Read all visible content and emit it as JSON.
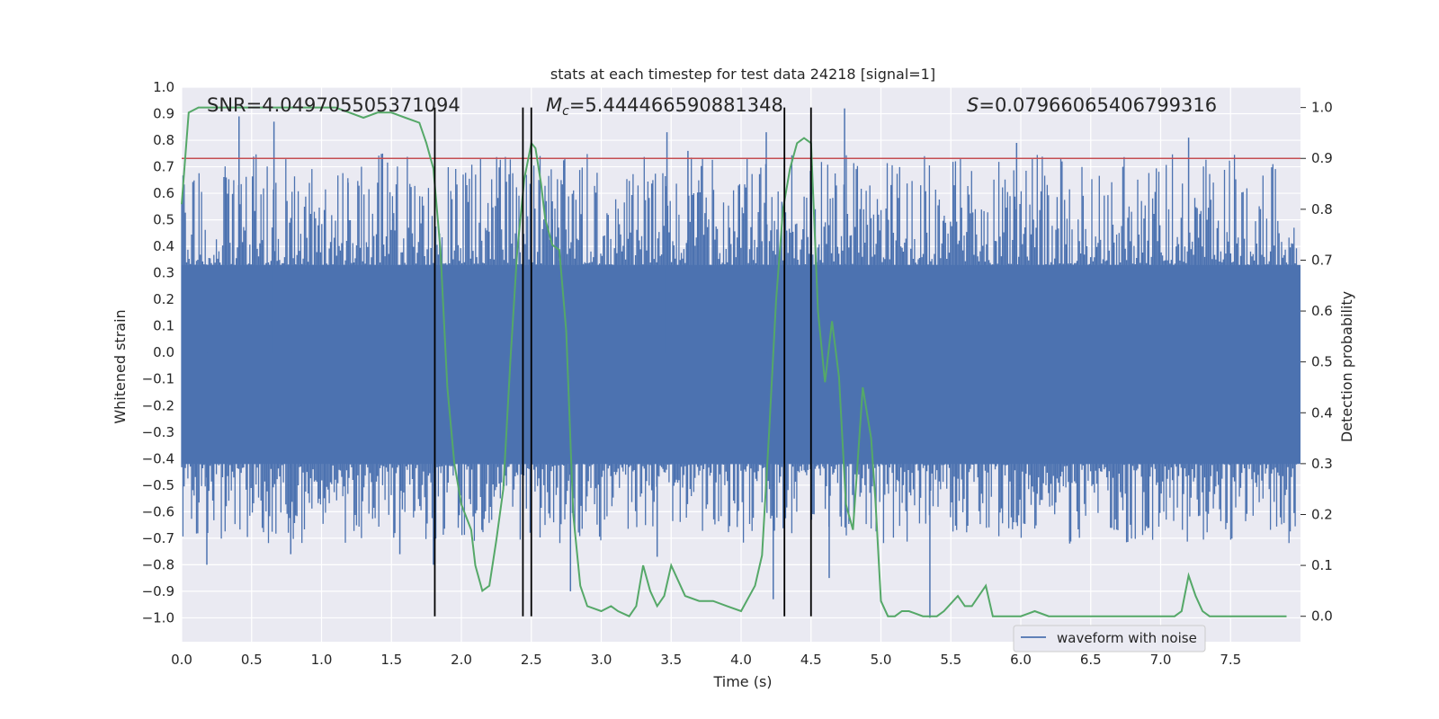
{
  "chart_data": {
    "type": "line",
    "title": "stats at each timestep for test data 24218 [signal=1]",
    "xlabel": "Time (s)",
    "ylabel_left": "Whitened strain",
    "ylabel_right": "Detection probability",
    "xlim": [
      0.0,
      8.0
    ],
    "ylim_left": [
      -1.09,
      1.0
    ],
    "ylim_right": [
      -0.05,
      1.04
    ],
    "x_ticks": [
      "0.0",
      "0.5",
      "1.0",
      "1.5",
      "2.0",
      "2.5",
      "3.0",
      "3.5",
      "4.0",
      "4.5",
      "5.0",
      "5.5",
      "6.0",
      "6.5",
      "7.0",
      "7.5"
    ],
    "y_ticks_left": [
      "1.0",
      "0.9",
      "0.8",
      "0.7",
      "0.6",
      "0.5",
      "0.4",
      "0.3",
      "0.2",
      "0.1",
      "0.0",
      "-0.1",
      "-0.2",
      "-0.3",
      "-0.4",
      "-0.5",
      "-0.6",
      "-0.7",
      "-0.8",
      "-0.9",
      "-1.0"
    ],
    "y_ticks_right": [
      "1.0",
      "0.9",
      "0.8",
      "0.7",
      "0.6",
      "0.5",
      "0.4",
      "0.3",
      "0.2",
      "0.1",
      "0.0"
    ],
    "grid": true,
    "legend_position": "bottom-right",
    "annotations": {
      "snr": "SNR=4.049705505371094",
      "mc_symbol": "M",
      "mc_sub": "c",
      "mc_value": "=5.444466590881348",
      "s_symbol": "S",
      "s_value": "=0.07966065406799316"
    },
    "threshold": {
      "value": 0.9,
      "axis": "right",
      "color": "#c44e52"
    },
    "vertical_lines": [
      1.81,
      2.44,
      2.5,
      4.31,
      4.5
    ],
    "waveform": {
      "name": "waveform with noise",
      "color": "#4c72b0",
      "baseline_low": -0.42,
      "baseline_high": 0.33,
      "spikes": [
        {
          "x": 0.18,
          "y": -0.8
        },
        {
          "x": 0.41,
          "y": 0.89
        },
        {
          "x": 0.66,
          "y": 0.87
        },
        {
          "x": 0.78,
          "y": -0.76
        },
        {
          "x": 1.56,
          "y": -0.76
        },
        {
          "x": 1.8,
          "y": -0.8
        },
        {
          "x": 2.65,
          "y": 0.57
        },
        {
          "x": 2.78,
          "y": -0.9
        },
        {
          "x": 3.4,
          "y": -0.77
        },
        {
          "x": 3.47,
          "y": 0.83
        },
        {
          "x": 4.18,
          "y": 0.83
        },
        {
          "x": 4.23,
          "y": -0.93
        },
        {
          "x": 4.63,
          "y": -0.85
        },
        {
          "x": 4.74,
          "y": 0.92
        },
        {
          "x": 5.35,
          "y": -1.0
        },
        {
          "x": 5.97,
          "y": 0.79
        },
        {
          "x": 6.35,
          "y": -0.72
        },
        {
          "x": 7.2,
          "y": 0.81
        },
        {
          "x": 6.73,
          "y": 0.7
        },
        {
          "x": 3.62,
          "y": 0.76
        },
        {
          "x": 1.19,
          "y": 0.64
        }
      ]
    },
    "detection_probability": {
      "color": "#55a868",
      "x": [
        0.0,
        0.05,
        0.12,
        0.3,
        0.5,
        0.7,
        0.9,
        1.1,
        1.2,
        1.3,
        1.4,
        1.5,
        1.6,
        1.7,
        1.75,
        1.8,
        1.85,
        1.9,
        1.95,
        2.0,
        2.07,
        2.1,
        2.15,
        2.2,
        2.25,
        2.3,
        2.35,
        2.4,
        2.45,
        2.5,
        2.53,
        2.57,
        2.6,
        2.65,
        2.7,
        2.75,
        2.8,
        2.85,
        2.9,
        3.0,
        3.07,
        3.12,
        3.2,
        3.25,
        3.3,
        3.35,
        3.4,
        3.45,
        3.5,
        3.6,
        3.7,
        3.8,
        3.9,
        4.0,
        4.1,
        4.15,
        4.2,
        4.25,
        4.3,
        4.35,
        4.4,
        4.45,
        4.5,
        4.55,
        4.6,
        4.65,
        4.7,
        4.75,
        4.8,
        4.87,
        4.93,
        4.96,
        5.0,
        5.05,
        5.1,
        5.15,
        5.2,
        5.3,
        5.4,
        5.45,
        5.55,
        5.6,
        5.65,
        5.7,
        5.75,
        5.8,
        5.85,
        5.9,
        6.0,
        6.1,
        6.2,
        6.4,
        6.6,
        6.8,
        7.0,
        7.1,
        7.15,
        7.2,
        7.25,
        7.3,
        7.35,
        7.4,
        7.5,
        7.6,
        7.9
      ],
      "y": [
        0.81,
        0.99,
        1.0,
        1.0,
        1.0,
        1.0,
        1.0,
        1.0,
        0.99,
        0.98,
        0.99,
        0.99,
        0.98,
        0.97,
        0.93,
        0.88,
        0.72,
        0.45,
        0.3,
        0.22,
        0.17,
        0.1,
        0.05,
        0.06,
        0.15,
        0.25,
        0.5,
        0.72,
        0.86,
        0.93,
        0.92,
        0.85,
        0.78,
        0.73,
        0.72,
        0.56,
        0.2,
        0.06,
        0.02,
        0.01,
        0.02,
        0.01,
        0.0,
        0.02,
        0.1,
        0.05,
        0.02,
        0.04,
        0.1,
        0.04,
        0.03,
        0.03,
        0.02,
        0.01,
        0.06,
        0.12,
        0.36,
        0.62,
        0.8,
        0.88,
        0.93,
        0.94,
        0.93,
        0.6,
        0.46,
        0.58,
        0.47,
        0.22,
        0.17,
        0.45,
        0.35,
        0.23,
        0.03,
        0.0,
        0.0,
        0.01,
        0.01,
        0.0,
        0.0,
        0.01,
        0.04,
        0.02,
        0.02,
        0.04,
        0.06,
        0.0,
        0.0,
        0.0,
        0.0,
        0.01,
        0.0,
        0.0,
        0.0,
        0.0,
        0.0,
        0.0,
        0.01,
        0.08,
        0.04,
        0.01,
        0.0,
        0.0,
        0.0,
        0.0,
        0.0
      ]
    },
    "legend": [
      {
        "label": "waveform with noise",
        "color": "#4c72b0"
      }
    ]
  }
}
